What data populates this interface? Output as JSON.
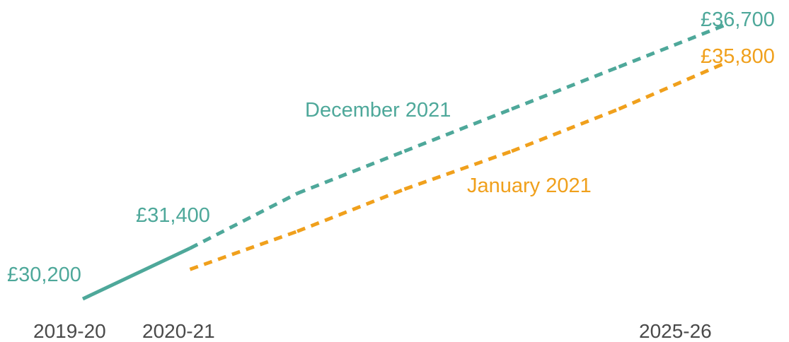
{
  "chart_data": {
    "type": "line",
    "title": "",
    "xlabel": "",
    "ylabel": "",
    "x_ticks": [
      "2019-20",
      "2020-21",
      "2025-26"
    ],
    "ylim": [
      29500,
      37000
    ],
    "grid": false,
    "legend": "none",
    "series": [
      {
        "name": "December 2021",
        "color": "#4ea89a",
        "points": [
          {
            "x": 2019,
            "y": 30200,
            "style": "solid"
          },
          {
            "x": 2020,
            "y": 31400,
            "style": "solid"
          },
          {
            "x": 2021,
            "y": 32700,
            "style": "dashed"
          },
          {
            "x": 2022,
            "y": 33700,
            "style": "dashed"
          },
          {
            "x": 2023,
            "y": 34700,
            "style": "dashed"
          },
          {
            "x": 2024,
            "y": 35700,
            "style": "dashed"
          },
          {
            "x": 2025,
            "y": 36700,
            "style": "dashed"
          }
        ]
      },
      {
        "name": "January 2021",
        "color": "#f0a01c",
        "points": [
          {
            "x": 2020,
            "y": 30900,
            "style": "dashed"
          },
          {
            "x": 2021,
            "y": 31800,
            "style": "dashed"
          },
          {
            "x": 2022,
            "y": 32800,
            "style": "dashed"
          },
          {
            "x": 2023,
            "y": 33700,
            "style": "dashed"
          },
          {
            "x": 2024,
            "y": 34700,
            "style": "dashed"
          },
          {
            "x": 2025,
            "y": 35800,
            "style": "dashed"
          }
        ]
      }
    ],
    "annotations": [
      {
        "text": "£30,200",
        "series": 0
      },
      {
        "text": "£31,400",
        "series": 0
      },
      {
        "text": "£36,700",
        "series": 0
      },
      {
        "text": "£35,800",
        "series": 1
      },
      {
        "text": "December 2021",
        "series": 0
      },
      {
        "text": "January 2021",
        "series": 1
      }
    ]
  }
}
